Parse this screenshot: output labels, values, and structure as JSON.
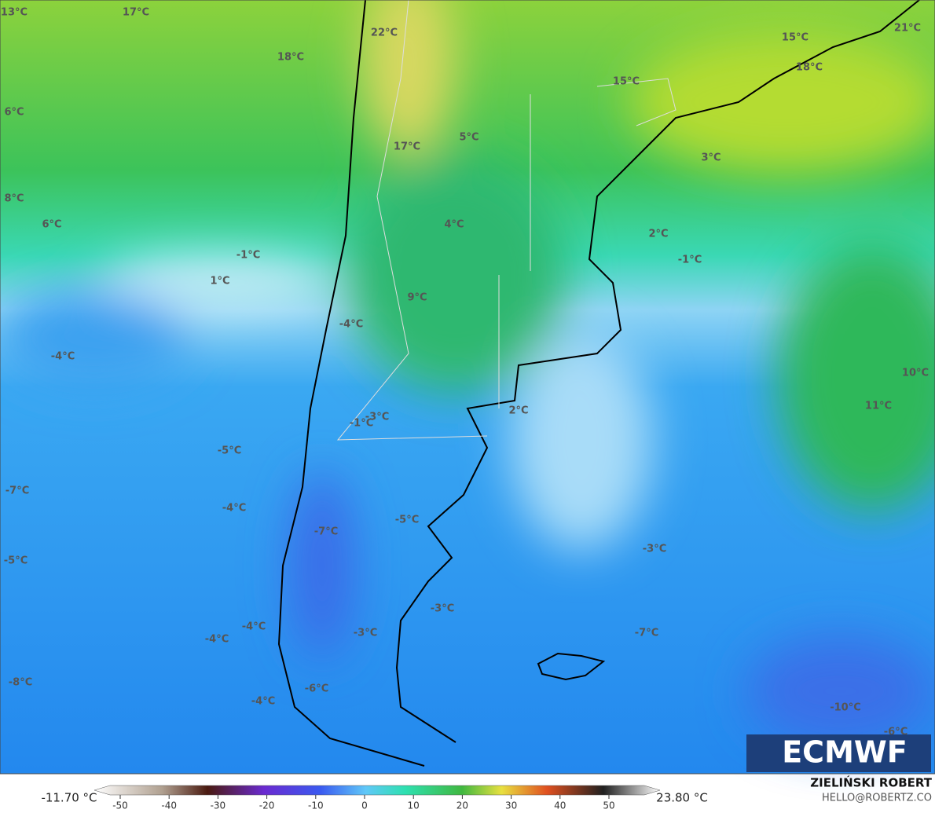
{
  "map": {
    "labels": [
      "13°C",
      "17°C",
      "22°C",
      "18°C",
      "15°C",
      "21°C",
      "15°C",
      "18°C",
      "6°C",
      "5°C",
      "17°C",
      "3°C",
      "8°C",
      "6°C",
      "4°C",
      "2°C",
      "-1°C",
      "-1°C",
      "1°C",
      "9°C",
      "-4°C",
      "-4°C",
      "10°C",
      "11°C",
      "2°C",
      "-3°C",
      "-1°C",
      "-5°C",
      "-7°C",
      "-4°C",
      "-5°C",
      "-7°C",
      "-3°C",
      "-5°C",
      "-3°C",
      "-4°C",
      "-7°C",
      "-3°C",
      "-4°C",
      "-8°C",
      "-6°C",
      "-4°C",
      "-10°C",
      "-6°C"
    ]
  },
  "colorbar": {
    "min_label": "-11.70 °C",
    "max_label": "23.80 °C",
    "ticks": [
      -50,
      -40,
      -30,
      -20,
      -10,
      0,
      10,
      20,
      30,
      40,
      50
    ]
  },
  "credits": {
    "logo": "ECMWF",
    "author": "ZIELIŃSKI ROBERT",
    "site": "HELLO@ROBERTZ.CO"
  }
}
